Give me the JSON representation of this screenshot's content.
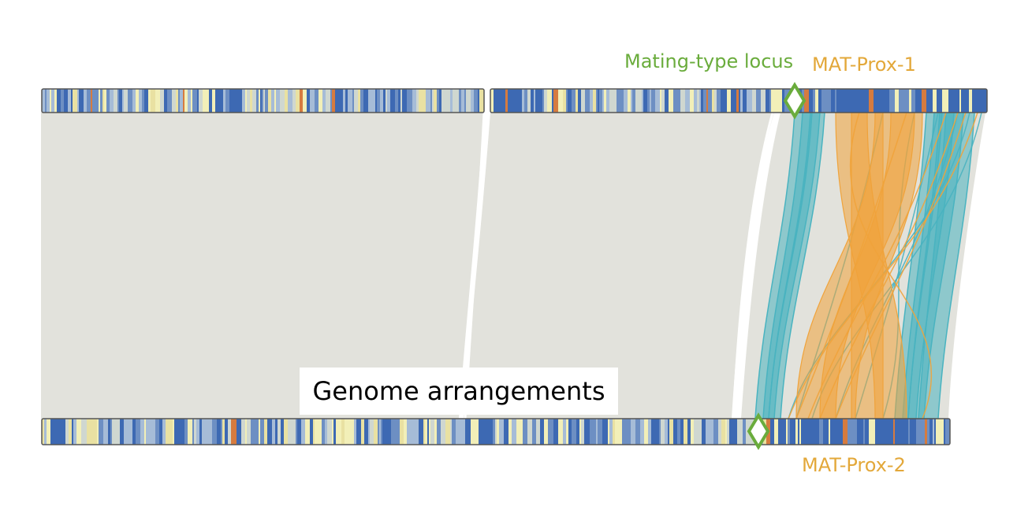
{
  "labels": {
    "mating_type_locus": "Mating-type locus",
    "mat_prox_1": "MAT-Prox-1",
    "mat_prox_2": "MAT-Prox-2",
    "figure_label": "Genome arrangements"
  },
  "colors": {
    "mating_locus": "#6aac3c",
    "mat_prox": "#e3a83a",
    "synteny_background": "#e2e2dc",
    "inverted_link": "#f0a33b",
    "colinear_link": "#49b3c0",
    "chromosome_outline": "#555555",
    "stripe_palette": [
      "#3d69b3",
      "#6d8fc3",
      "#a6bcd7",
      "#cfd7d0",
      "#f2efb8",
      "#e9e1a2",
      "#d67b3f"
    ]
  },
  "tracks": [
    {
      "id": "top-contig-1",
      "role": "upper genome, contig 1"
    },
    {
      "id": "top-contig-2",
      "role": "upper genome, contig 2"
    },
    {
      "id": "bottom-chromosome",
      "role": "lower genome"
    }
  ],
  "highlights": [
    {
      "name": "mating-type-locus-top",
      "track": "top-contig-2",
      "shape": "diamond"
    },
    {
      "name": "mating-type-locus-bottom",
      "track": "bottom-chromosome",
      "shape": "diamond"
    }
  ]
}
